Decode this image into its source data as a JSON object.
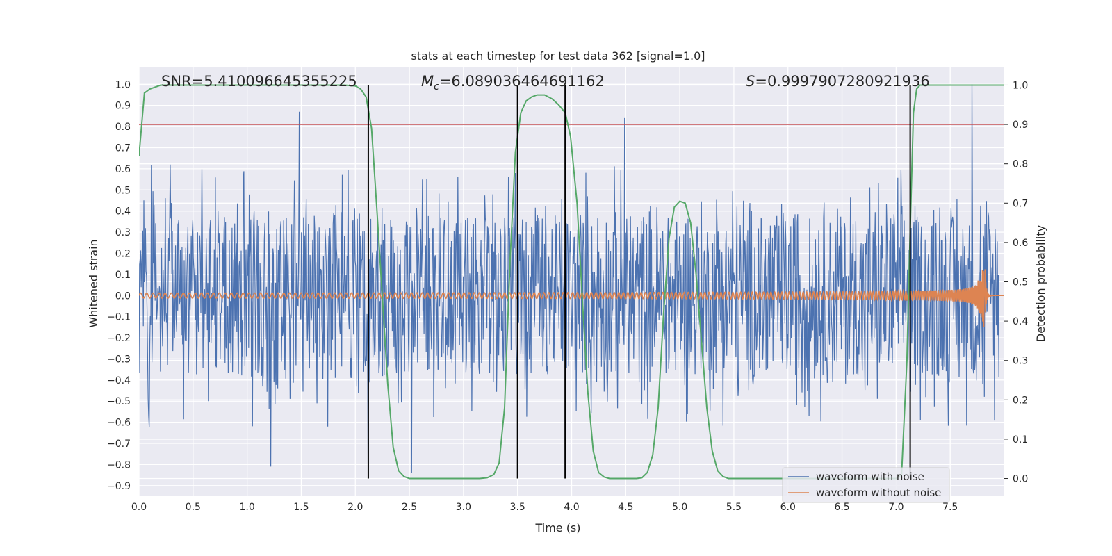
{
  "chart_data": {
    "type": "line",
    "title": "stats at each timestep for test data 362 [signal=1.0]",
    "xlabel": "Time (s)",
    "ylabel": "Whitened strain",
    "ylabel_right": "Detection probability",
    "xlim": [
      0.0,
      8.0
    ],
    "ylim": [
      -0.95,
      1.08
    ],
    "ylim_right": [
      -0.045,
      1.045
    ],
    "x_ticks": [
      "0.0",
      "0.5",
      "1.0",
      "1.5",
      "2.0",
      "2.5",
      "3.0",
      "3.5",
      "4.0",
      "4.5",
      "5.0",
      "5.5",
      "6.0",
      "6.5",
      "7.0",
      "7.5"
    ],
    "y_ticks": [
      "1.0",
      "0.9",
      "0.8",
      "0.7",
      "0.6",
      "0.5",
      "0.4",
      "0.3",
      "0.2",
      "0.1",
      "0.0",
      "-0.1",
      "-0.2",
      "-0.3",
      "-0.4",
      "-0.5",
      "-0.6",
      "-0.7",
      "-0.8",
      "-0.9"
    ],
    "y_right_ticks": [
      "1.0",
      "0.9",
      "0.8",
      "0.7",
      "0.6",
      "0.5",
      "0.4",
      "0.3",
      "0.2",
      "0.1",
      "0.0"
    ],
    "annotations": {
      "snr": "SNR=5.410096645355225",
      "mc_symbol": "M",
      "mc_sub": "c",
      "mc_value": "=6.089036464691162",
      "s_symbol": "S",
      "s_value": "=0.9997907280921936"
    },
    "threshold_probability": 0.9,
    "threshold_color": "#c44e52",
    "crossing_times": [
      2.12,
      3.5,
      3.94,
      7.13
    ],
    "crossing_color": "#000000",
    "detection_probability": {
      "name": "detection probability",
      "color": "#55a868",
      "t": [
        0.0,
        0.05,
        0.1,
        0.15,
        0.2,
        0.3,
        0.5,
        1.0,
        1.5,
        1.9,
        2.0,
        2.05,
        2.1,
        2.15,
        2.2,
        2.25,
        2.3,
        2.35,
        2.4,
        2.45,
        2.5,
        2.55,
        2.6,
        2.8,
        3.0,
        3.15,
        3.22,
        3.28,
        3.33,
        3.38,
        3.43,
        3.48,
        3.53,
        3.58,
        3.63,
        3.68,
        3.75,
        3.82,
        3.88,
        3.94,
        3.99,
        4.05,
        4.1,
        4.15,
        4.2,
        4.25,
        4.3,
        4.35,
        4.4,
        4.5,
        4.6,
        4.65,
        4.7,
        4.75,
        4.8,
        4.85,
        4.9,
        4.95,
        5.0,
        5.05,
        5.1,
        5.15,
        5.2,
        5.25,
        5.3,
        5.35,
        5.4,
        5.45,
        5.5,
        6.0,
        6.5,
        7.0,
        7.05,
        7.1,
        7.13,
        7.16,
        7.19,
        7.22,
        7.3,
        7.5,
        8.0
      ],
      "p": [
        0.82,
        0.98,
        0.99,
        0.995,
        1.0,
        1.0,
        1.0,
        1.0,
        1.0,
        1.0,
        0.998,
        0.99,
        0.97,
        0.89,
        0.68,
        0.46,
        0.24,
        0.08,
        0.02,
        0.005,
        0.0,
        0.0,
        0.0,
        0.0,
        0.0,
        0.0,
        0.002,
        0.01,
        0.04,
        0.18,
        0.55,
        0.83,
        0.93,
        0.96,
        0.97,
        0.975,
        0.975,
        0.965,
        0.95,
        0.93,
        0.87,
        0.7,
        0.45,
        0.22,
        0.07,
        0.015,
        0.004,
        0.0,
        0.0,
        0.0,
        0.0,
        0.002,
        0.015,
        0.06,
        0.18,
        0.42,
        0.61,
        0.69,
        0.705,
        0.7,
        0.65,
        0.52,
        0.35,
        0.18,
        0.07,
        0.02,
        0.005,
        0.0,
        0.0,
        0.0,
        0.0,
        0.0,
        0.01,
        0.3,
        0.63,
        0.93,
        0.99,
        1.0,
        1.0,
        1.0,
        1.0
      ]
    },
    "series": [
      {
        "name": "waveform with noise",
        "color": "#4c72b0",
        "duration": 7.95,
        "noise_amplitude": 0.38,
        "samples": 1600
      },
      {
        "name": "waveform without noise",
        "color": "#dd8452",
        "chirp_start_amplitude": 0.012,
        "chirp_peak_amplitude": 0.16,
        "merger_time": 7.82,
        "end_time": 8.0
      }
    ],
    "noise_peaks": [
      {
        "t": 1.48,
        "v": 0.87
      },
      {
        "t": 4.49,
        "v": 0.84
      },
      {
        "t": 7.7,
        "v": 1.0
      },
      {
        "t": 2.12,
        "v": -0.81
      },
      {
        "t": 2.52,
        "v": -0.84
      },
      {
        "t": 1.22,
        "v": -0.81
      }
    ],
    "legend": {
      "location": "bottom-right",
      "entries": [
        {
          "label": "waveform with noise",
          "color": "#4c72b0"
        },
        {
          "label": "waveform without noise",
          "color": "#dd8452"
        }
      ]
    },
    "colors": {
      "axes_background": "#eaeaf2",
      "grid": "#ffffff"
    }
  }
}
